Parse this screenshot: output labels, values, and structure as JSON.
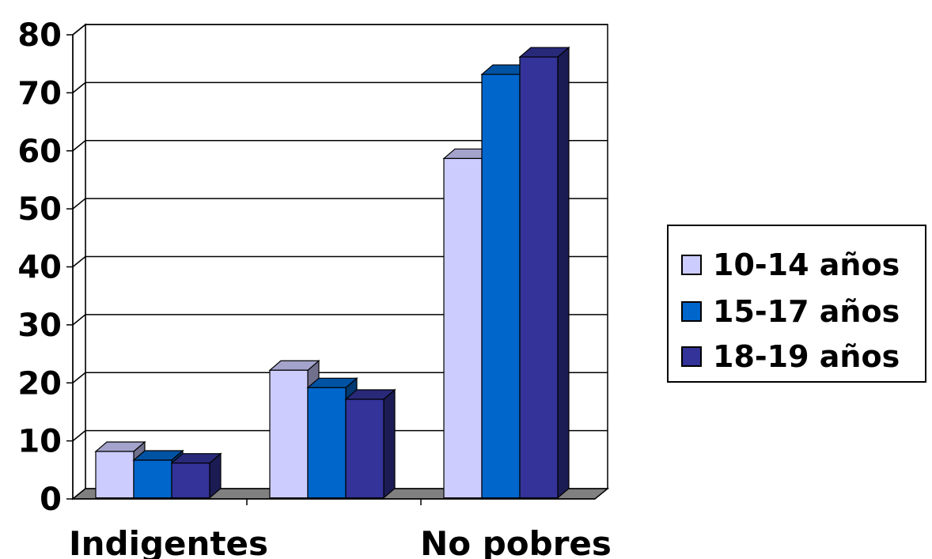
{
  "chart_data": {
    "type": "bar",
    "categories": [
      "Indigentes",
      "",
      "No pobres"
    ],
    "category_labels_shown": [
      "Indigentes",
      "No pobres"
    ],
    "series": [
      {
        "name": "10-14 años",
        "values": [
          8,
          22,
          58.5
        ],
        "color": "#CCCCFF"
      },
      {
        "name": "15-17 años",
        "values": [
          6.5,
          19,
          73
        ],
        "color": "#0066CC"
      },
      {
        "name": "18-19 años",
        "values": [
          6,
          17,
          76
        ],
        "color": "#333399"
      }
    ],
    "ylim": [
      0,
      80
    ],
    "yticks": [
      "0",
      "10",
      "20",
      "30",
      "40",
      "50",
      "60",
      "70",
      "80"
    ],
    "grid": true,
    "legend_position": "right",
    "style": "3d-clustered-bar"
  }
}
